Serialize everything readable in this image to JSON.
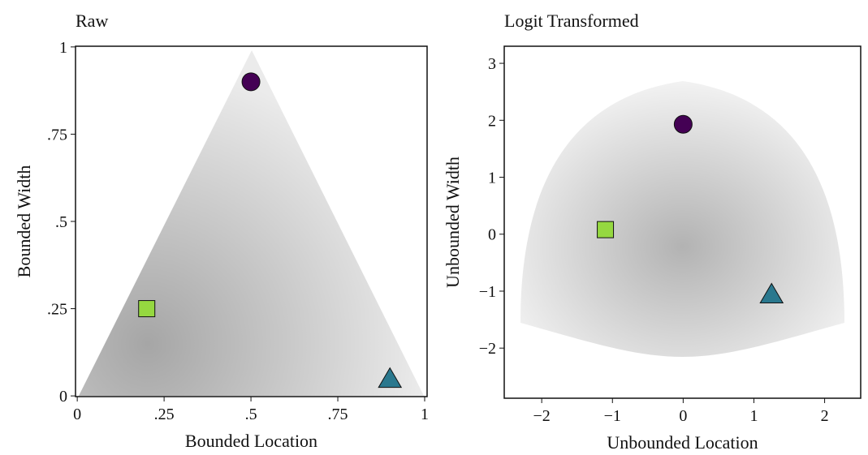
{
  "chart_data": [
    {
      "type": "scatter",
      "title": "Raw",
      "xlabel": "Bounded Location",
      "ylabel": "Bounded Width",
      "xlim": [
        -0.005,
        1.007
      ],
      "ylim": [
        -0.002,
        1.002
      ],
      "xticks": [
        0,
        {
          "value": 0.25,
          "label": ".25"
        },
        {
          "value": 0.5,
          "label": ".5"
        },
        {
          "value": 0.75,
          "label": ".75"
        },
        1
      ],
      "yticks": [
        0,
        {
          "value": 0.25,
          "label": ".25"
        },
        {
          "value": 0.5,
          "label": ".5"
        },
        {
          "value": 0.75,
          "label": ".75"
        },
        1
      ],
      "points": [
        {
          "marker": "circle",
          "color": "#440154",
          "x": 0.5,
          "y": 0.9
        },
        {
          "marker": "square",
          "color": "#95d840",
          "x": 0.2,
          "y": 0.25
        },
        {
          "marker": "triangle",
          "color": "#2a788e",
          "x": 0.9,
          "y": 0.05
        }
      ]
    },
    {
      "type": "scatter",
      "title": "Logit Transformed",
      "xlabel": "Unbounded Location",
      "ylabel": "Unbounded Width",
      "xlim": [
        -2.53,
        2.51
      ],
      "ylim": [
        -2.88,
        3.3
      ],
      "xticks": [
        {
          "value": -2,
          "label": "−2"
        },
        {
          "value": -1,
          "label": "−1"
        },
        0,
        1,
        2
      ],
      "yticks": [
        {
          "value": -2,
          "label": "−2"
        },
        {
          "value": -1,
          "label": "−1"
        },
        0,
        1,
        2,
        3
      ],
      "points": [
        {
          "marker": "circle",
          "color": "#440154",
          "x": 0,
          "y": 1.93
        },
        {
          "marker": "square",
          "color": "#95d840",
          "x": -1.1,
          "y": 0.08
        },
        {
          "marker": "triangle",
          "color": "#2a788e",
          "x": 1.25,
          "y": -1.05
        }
      ]
    }
  ]
}
